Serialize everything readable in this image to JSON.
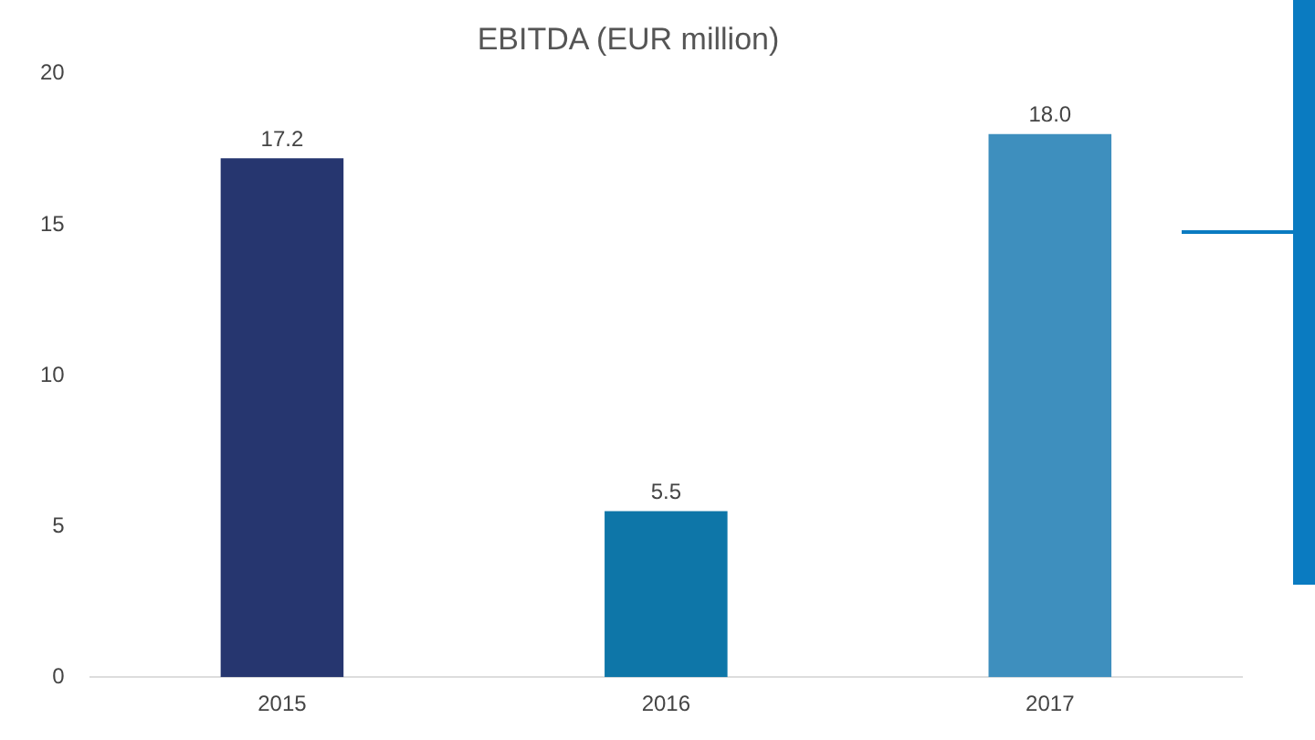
{
  "chart_data": {
    "type": "bar",
    "title": "EBITDA (EUR million)",
    "categories": [
      "2015",
      "2016",
      "2017"
    ],
    "values": [
      17.2,
      5.5,
      18.0
    ],
    "colors": [
      "#26366f",
      "#0e76a8",
      "#3e8fbe"
    ],
    "value_labels": [
      "17.2",
      "5.5",
      "18.0"
    ],
    "ylim": [
      0,
      20
    ],
    "yticks": [
      0,
      5,
      10,
      15,
      20
    ],
    "grid": false,
    "legend": false
  }
}
